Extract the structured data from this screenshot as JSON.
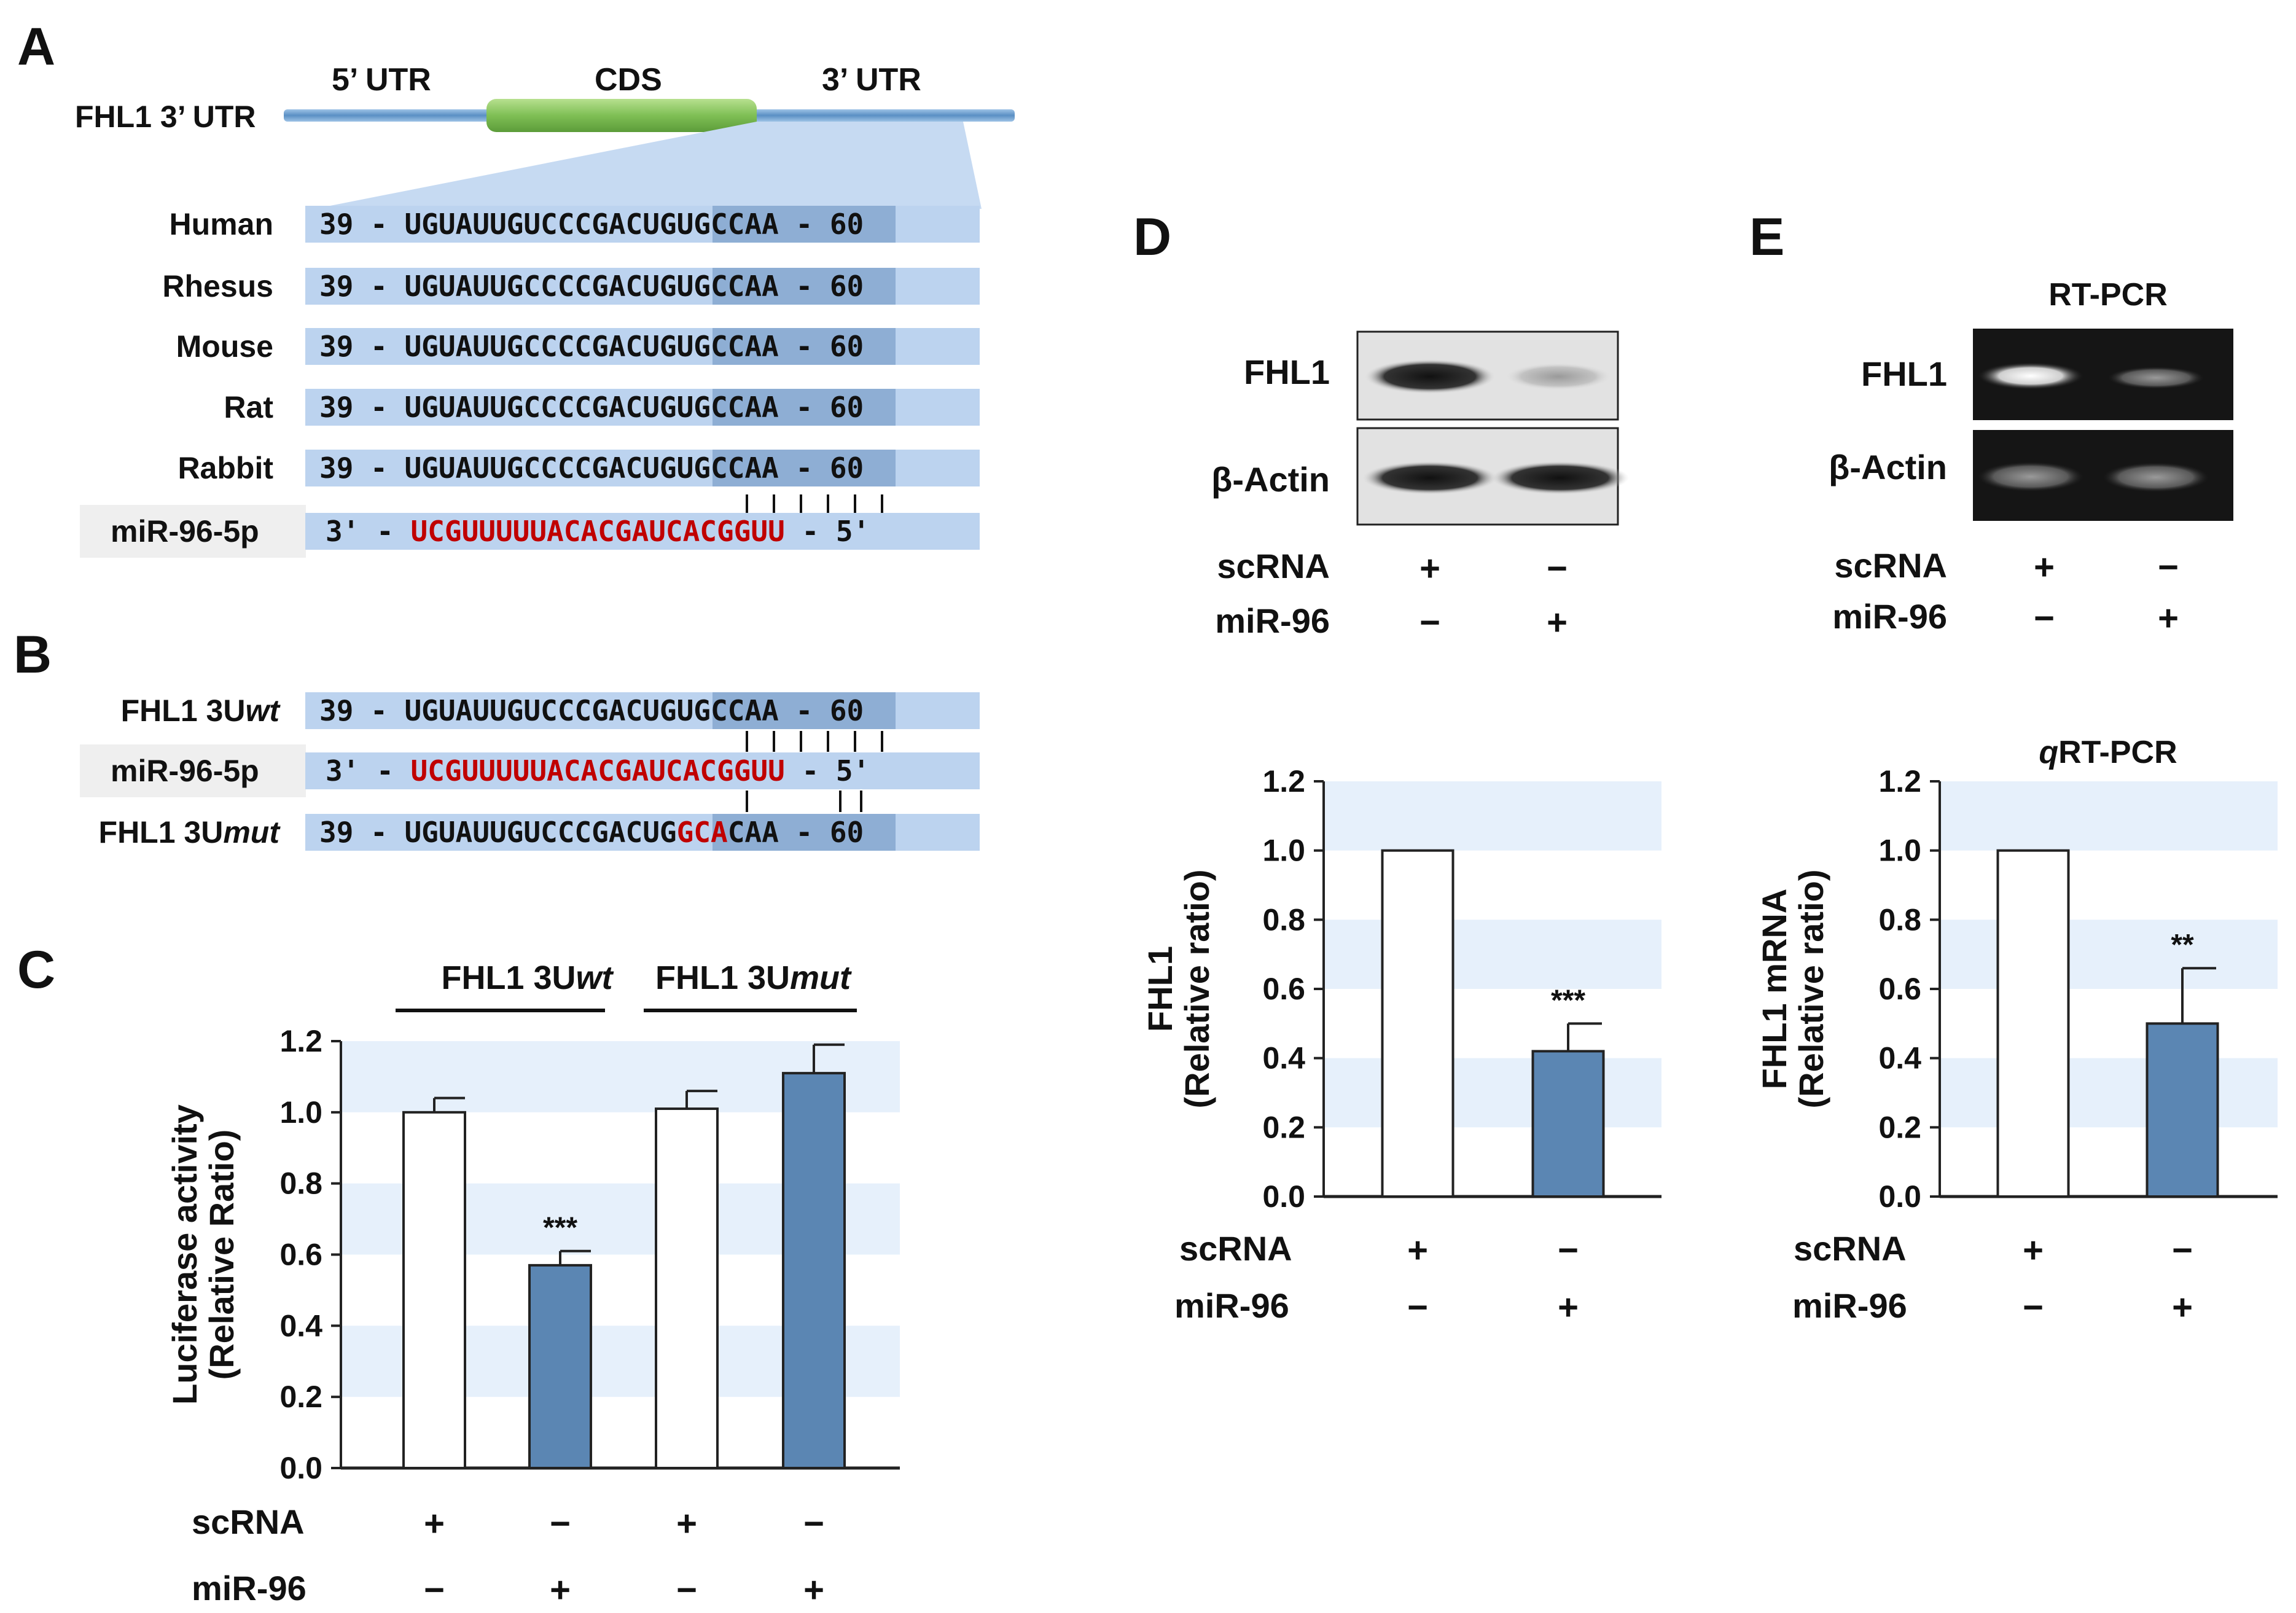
{
  "panels": {
    "A": "A",
    "B": "B",
    "C": "C",
    "D": "D",
    "E": "E"
  },
  "colors": {
    "bar_scrna": "#ffffff",
    "bar_mir96": "#5b86b3",
    "seq_box": "#bcd3ef",
    "seed_box": "#8eaed4",
    "band": "#e6f0fb",
    "red": "#c00000",
    "cds": "#8cc866"
  },
  "panel_a": {
    "gene_label": "FHL1 3’ UTR",
    "utr5": "5’ UTR",
    "cds": "CDS",
    "utr3": "3’ UTR",
    "species": [
      {
        "name": "Human",
        "seq": "39 - UGUAUUGUCCCGACUGUGCCAA - 60"
      },
      {
        "name": "Rhesus",
        "seq": "39 - UGUAUUGCCCCGACUGUGCCAA - 60"
      },
      {
        "name": "Mouse",
        "seq": "39 - UGUAUUGCCCCGACUGUGCCAA - 60"
      },
      {
        "name": "Rat",
        "seq": "39 - UGUAUUGCCCCGACUGUGCCAA - 60"
      },
      {
        "name": "Rabbit",
        "seq": "39 - UGUAUUGCCCCGACUGUGCCAA - 60"
      }
    ],
    "mirna": {
      "name": "miR-96-5p",
      "prefix": "3' -",
      "seq": "UCGUUUUUACACGAUCACGGUU",
      "suffix": "- 5'"
    }
  },
  "panel_b": {
    "wt": {
      "name_base": "FHL1 3U",
      "name_ital": "wt",
      "seq": "39 - UGUAUUGUCCCGACUGUGCCAA - 60"
    },
    "mirna": {
      "name": "miR-96-5p",
      "prefix": "3' -",
      "seq": "UCGUUUUUACACGAUCACGGUU",
      "suffix": "- 5'"
    },
    "mut": {
      "name_base": "FHL1 3U",
      "name_ital": "mut",
      "seq_a": "39 - UGUAUUGUCCCGACUG",
      "seq_mut": "GCA",
      "seq_b": "CAA - 60"
    }
  },
  "panel_c": {
    "group_wt": "FHL1 3Uwt",
    "group_mut": "FHL1 3Umut",
    "row_scrna": "scRNA",
    "row_mir96": "miR-96",
    "scrna_signs": [
      "+",
      "−",
      "+",
      "−"
    ],
    "mir96_signs": [
      "−",
      "+",
      "−",
      "+"
    ]
  },
  "panel_d": {
    "blot_fhl1": "FHL1",
    "blot_actin": "β-Actin",
    "row_scrna": "scRNA",
    "row_mir96": "miR-96",
    "scrna_signs": [
      "+",
      "−"
    ],
    "mir96_signs": [
      "−",
      "+"
    ]
  },
  "panel_e": {
    "rtpcr_title": "RT-PCR",
    "gel_fhl1": "FHL1",
    "gel_actin": "β-Actin",
    "row_scrna": "scRNA",
    "row_mir96": "miR-96",
    "scrna_signs": [
      "+",
      "−"
    ],
    "mir96_signs": [
      "−",
      "+"
    ],
    "qpcr_title_ital": "q",
    "qpcr_title_rest": "RT-PCR"
  },
  "chart_data": [
    {
      "id": "C",
      "type": "bar",
      "title": "",
      "categories": [
        "scRNA + FHL1 3Uwt",
        "miR-96 + FHL1 3Uwt",
        "scRNA + FHL1 3Umut",
        "miR-96 + FHL1 3Umut"
      ],
      "values": [
        1.0,
        0.57,
        1.01,
        1.11
      ],
      "errors": [
        0.04,
        0.04,
        0.05,
        0.08
      ],
      "significance": [
        "",
        "***",
        "",
        ""
      ],
      "ylabel_lines": [
        "Luciferase activity",
        "(Relative Ratio)"
      ],
      "ylim": [
        0,
        1.2
      ],
      "yticks": [
        "0.0",
        "0.2",
        "0.4",
        "0.6",
        "0.8",
        "1.0",
        "1.2"
      ]
    },
    {
      "id": "D",
      "type": "bar",
      "title": "",
      "categories": [
        "scRNA",
        "miR-96"
      ],
      "values": [
        1.0,
        0.42
      ],
      "errors": [
        0.0,
        0.08
      ],
      "significance": [
        "",
        "***"
      ],
      "ylabel_lines": [
        "FHL1",
        "(Relative ratio)"
      ],
      "ylim": [
        0,
        1.2
      ],
      "yticks": [
        "0.0",
        "0.2",
        "0.4",
        "0.6",
        "0.8",
        "1.0",
        "1.2"
      ]
    },
    {
      "id": "E",
      "type": "bar",
      "title": "qRT-PCR",
      "categories": [
        "scRNA",
        "miR-96"
      ],
      "values": [
        1.0,
        0.5
      ],
      "errors": [
        0.0,
        0.16
      ],
      "significance": [
        "",
        "**"
      ],
      "ylabel_lines": [
        "FHL1 mRNA",
        "(Relative ratio)"
      ],
      "ylim": [
        0,
        1.2
      ],
      "yticks": [
        "0.0",
        "0.2",
        "0.4",
        "0.6",
        "0.8",
        "1.0",
        "1.2"
      ]
    }
  ]
}
